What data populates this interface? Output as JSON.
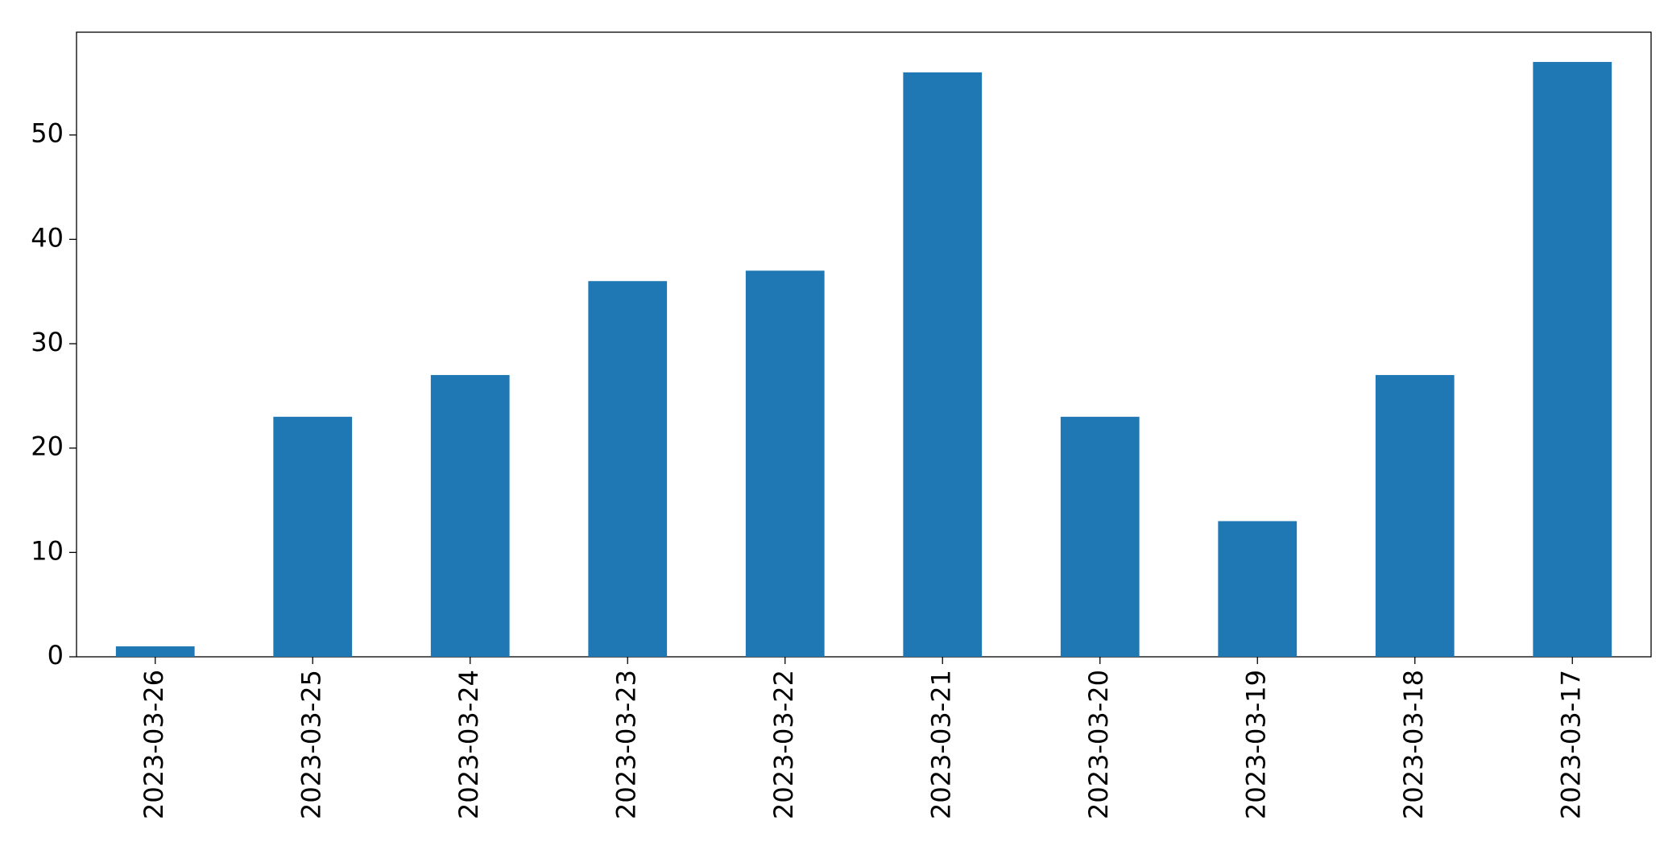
{
  "chart_data": {
    "type": "bar",
    "categories": [
      "2023-03-26",
      "2023-03-25",
      "2023-03-24",
      "2023-03-23",
      "2023-03-22",
      "2023-03-21",
      "2023-03-20",
      "2023-03-19",
      "2023-03-18",
      "2023-03-17"
    ],
    "values": [
      1,
      23,
      27,
      36,
      37,
      56,
      23,
      13,
      27,
      57
    ],
    "color": "#1f77b4",
    "ylim": [
      0,
      59.85
    ],
    "yticks": [
      0,
      10,
      20,
      30,
      40,
      50
    ],
    "grid": false
  }
}
